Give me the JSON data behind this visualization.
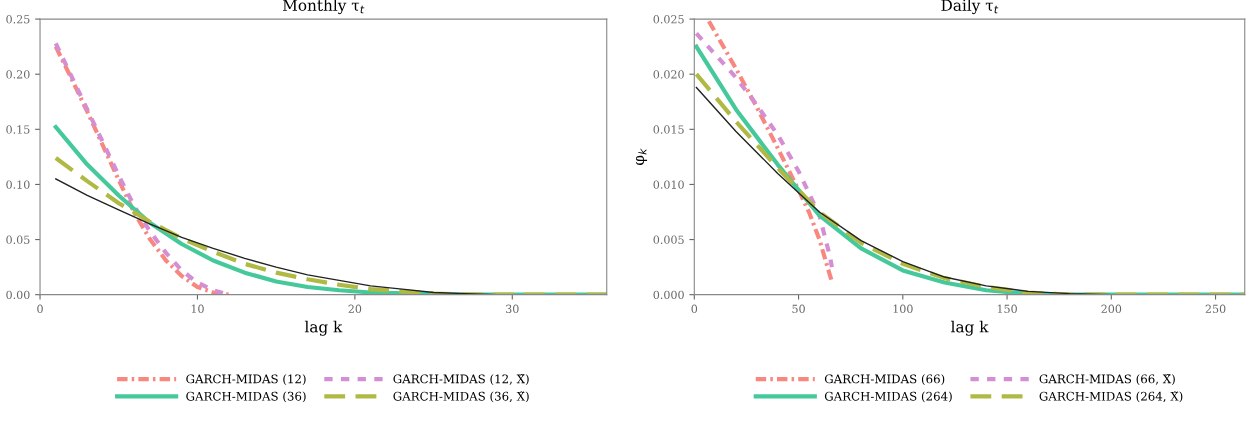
{
  "chart_data": [
    {
      "type": "line",
      "title": "Monthly τ$_{t}$",
      "xlabel": "lag k",
      "xlim": [
        0,
        36
      ],
      "xticks": [
        0,
        10,
        20,
        30
      ],
      "ylim": [
        0,
        0.25
      ],
      "yticks": [
        {
          "value": 0,
          "label": "0.00"
        },
        {
          "value": 0.05,
          "label": "0.05"
        },
        {
          "value": 0.1,
          "label": "0.10"
        },
        {
          "value": 0.15,
          "label": "0.15"
        },
        {
          "value": 0.2,
          "label": "0.20"
        },
        {
          "value": 0.25,
          "label": "0.25"
        }
      ],
      "legend": "bottom",
      "grid": false,
      "series": [
        {
          "name": "GARCH-MIDAS (12)",
          "color": "#f7877f",
          "line_style": "dashdot",
          "x": [
            1,
            2,
            3,
            4,
            5,
            6,
            7,
            8,
            9,
            10,
            11,
            12
          ],
          "values": [
            0.225,
            0.196,
            0.166,
            0.135,
            0.104,
            0.074,
            0.05,
            0.031,
            0.017,
            0.007,
            0.002,
            0
          ]
        },
        {
          "name": "GARCH-MIDAS (12, X̃)",
          "color": "#d48fd4",
          "line_style": "dotted",
          "x": [
            1,
            2,
            3,
            4,
            5,
            6,
            7,
            8,
            9,
            10,
            11,
            12
          ],
          "values": [
            0.228,
            0.198,
            0.168,
            0.138,
            0.108,
            0.08,
            0.057,
            0.038,
            0.022,
            0.011,
            0.004,
            0
          ]
        },
        {
          "name": "GARCH-MIDAS (36)",
          "color": "#45c99a",
          "line_style": "solid",
          "x": [
            1,
            3,
            5,
            7,
            9,
            11,
            13,
            15,
            17,
            19,
            21,
            24,
            27,
            36
          ],
          "values": [
            0.152,
            0.118,
            0.09,
            0.065,
            0.046,
            0.031,
            0.02,
            0.012,
            0.007,
            0.004,
            0.002,
            0.001,
            0,
            0
          ]
        },
        {
          "name": "GARCH-MIDAS (36, X̃)",
          "color": "#b1b945",
          "line_style": "dashed",
          "x": [
            1,
            3,
            5,
            7,
            9,
            11,
            13,
            15,
            17,
            19,
            21,
            23,
            25,
            28,
            36
          ],
          "values": [
            0.124,
            0.103,
            0.083,
            0.066,
            0.051,
            0.039,
            0.028,
            0.02,
            0.014,
            0.009,
            0.005,
            0.003,
            0.001,
            0,
            0
          ]
        },
        {
          "color": "#222222",
          "line_style": "solid",
          "x": [
            1,
            3,
            5,
            7,
            9,
            11,
            13,
            15,
            17,
            19,
            21,
            23,
            25,
            27,
            29
          ],
          "values": [
            0.105,
            0.09,
            0.077,
            0.064,
            0.052,
            0.042,
            0.033,
            0.025,
            0.018,
            0.013,
            0.008,
            0.005,
            0.002,
            0.001,
            0
          ]
        }
      ]
    },
    {
      "type": "line",
      "title": "Daily τ$_{t}$",
      "xlabel": "lag k",
      "ylabel": "φ$_{k}$",
      "xlim": [
        0,
        264
      ],
      "xticks": [
        0,
        50,
        100,
        150,
        200,
        250
      ],
      "ylim": [
        0,
        0.025
      ],
      "yticks": [
        {
          "value": 0,
          "label": "0.000"
        },
        {
          "value": 0.005,
          "label": "0.005"
        },
        {
          "value": 0.01,
          "label": "0.010"
        },
        {
          "value": 0.015,
          "label": "0.015"
        },
        {
          "value": 0.02,
          "label": "0.020"
        },
        {
          "value": 0.025,
          "label": "0.025"
        }
      ],
      "legend": "bottom",
      "grid": false,
      "series": [
        {
          "name": "GARCH-MIDAS (66)",
          "color": "#f7877f",
          "line_style": "dashdot",
          "x": [
            7,
            20,
            30,
            40,
            50,
            55,
            60,
            65,
            66
          ],
          "values": [
            0.0248,
            0.0205,
            0.017,
            0.0133,
            0.0095,
            0.0075,
            0.005,
            0.0018,
            0.0012
          ]
        },
        {
          "name": "GARCH-MIDAS (66, X̃)",
          "color": "#d48fd4",
          "line_style": "dotted",
          "x": [
            1,
            10,
            20,
            30,
            40,
            50,
            60,
            65,
            66
          ],
          "values": [
            0.0237,
            0.0218,
            0.0197,
            0.0172,
            0.0145,
            0.0112,
            0.0072,
            0.0035,
            0.0025
          ]
        },
        {
          "name": "GARCH-MIDAS (264)",
          "color": "#45c99a",
          "line_style": "solid",
          "x": [
            1,
            20,
            40,
            60,
            80,
            100,
            120,
            140,
            160,
            180,
            264
          ],
          "values": [
            0.0225,
            0.0168,
            0.0118,
            0.0072,
            0.0042,
            0.0022,
            0.0011,
            0.0004,
            0.0001,
            0,
            0
          ]
        },
        {
          "name": "GARCH-MIDAS (264, X̃)",
          "color": "#b1b945",
          "line_style": "dashed",
          "x": [
            1,
            20,
            40,
            60,
            80,
            100,
            120,
            140,
            160,
            180,
            264
          ],
          "values": [
            0.02,
            0.0157,
            0.0115,
            0.0075,
            0.0047,
            0.0028,
            0.0015,
            0.0007,
            0.0002,
            0,
            0
          ]
        },
        {
          "color": "#222222",
          "line_style": "solid",
          "x": [
            1,
            20,
            40,
            60,
            80,
            100,
            120,
            140,
            160,
            180,
            200
          ],
          "values": [
            0.0188,
            0.0148,
            0.011,
            0.0075,
            0.0049,
            0.003,
            0.0016,
            0.0008,
            0.0003,
            0.0001,
            0
          ]
        }
      ]
    }
  ]
}
